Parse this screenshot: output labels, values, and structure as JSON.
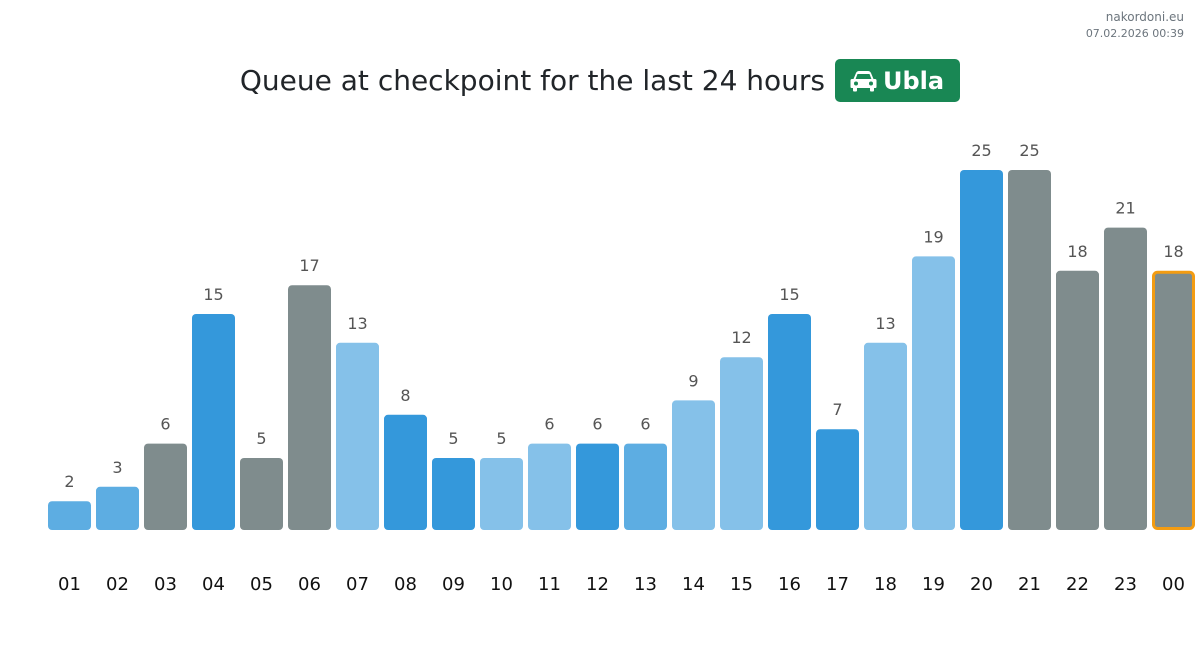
{
  "source": {
    "site": "nakordoni.eu",
    "timestamp": "07.02.2026 00:39"
  },
  "header": {
    "title": "Queue at checkpoint for the last 24 hours",
    "badge_label": "Ubla",
    "badge_icon": "car-icon",
    "badge_color": "#198754"
  },
  "colors": {
    "blue_dark": "#3498db",
    "blue_medium": "#5dade2",
    "blue_light": "#85c1e9",
    "gray": "#7f8c8d",
    "highlight_border": "#f39c12"
  },
  "chart_data": {
    "type": "bar",
    "title": "Queue at checkpoint for the last 24 hours",
    "xlabel": "",
    "ylabel": "",
    "ylim": [
      0,
      25
    ],
    "grid": false,
    "categories": [
      "01",
      "02",
      "03",
      "04",
      "05",
      "06",
      "07",
      "08",
      "09",
      "10",
      "11",
      "12",
      "13",
      "14",
      "15",
      "16",
      "17",
      "18",
      "19",
      "20",
      "21",
      "22",
      "23",
      "00"
    ],
    "values": [
      2,
      3,
      6,
      15,
      5,
      17,
      13,
      8,
      5,
      5,
      6,
      6,
      6,
      9,
      12,
      15,
      7,
      13,
      19,
      25,
      25,
      18,
      21,
      18
    ],
    "bar_colors": [
      "#5dade2",
      "#5dade2",
      "#7f8c8d",
      "#3498db",
      "#7f8c8d",
      "#7f8c8d",
      "#85c1e9",
      "#3498db",
      "#3498db",
      "#85c1e9",
      "#85c1e9",
      "#3498db",
      "#5dade2",
      "#85c1e9",
      "#85c1e9",
      "#3498db",
      "#3498db",
      "#85c1e9",
      "#85c1e9",
      "#3498db",
      "#7f8c8d",
      "#7f8c8d",
      "#7f8c8d",
      "#7f8c8d"
    ],
    "highlighted_category": "00"
  }
}
